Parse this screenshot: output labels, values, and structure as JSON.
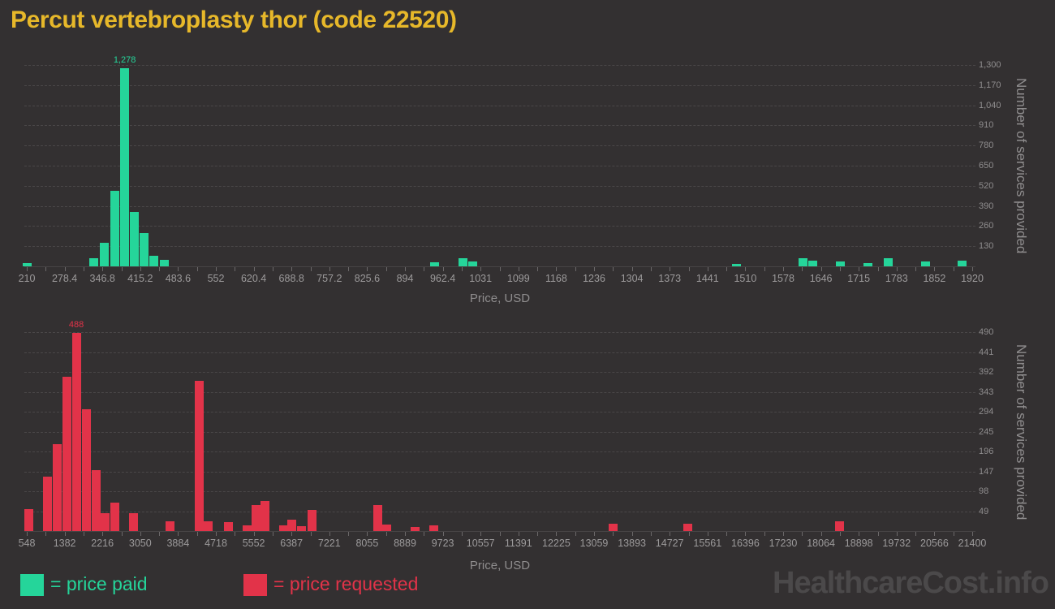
{
  "title": "Percut vertebroplasty thor (code 22520)",
  "watermark": "HealthcareCost.info",
  "colors": {
    "background": "#333031",
    "paid": "#25D59A",
    "requested": "#E23349",
    "title": "#E7B82A",
    "grid": "#4A4748",
    "axis_text": "#9C9A9B",
    "watermark": "#4B494A"
  },
  "legend": [
    {
      "label": "= price paid",
      "color": "#25D59A"
    },
    {
      "label": "= price requested",
      "color": "#E23349"
    }
  ],
  "chart_data": [
    {
      "type": "bar",
      "series_name": "price paid",
      "color": "#25D59A",
      "title": "",
      "xlabel": "Price, USD",
      "ylabel": "Number of services provided",
      "peak_label": "1,278",
      "legend_position": "bottom",
      "grid": true,
      "x_axis": {
        "min": 210,
        "max": 1920,
        "tick_labels": [
          "210",
          "278.4",
          "346.8",
          "415.2",
          "483.6",
          "552",
          "620.4",
          "688.8",
          "757.2",
          "825.6",
          "894",
          "962.4",
          "1031",
          "1099",
          "1168",
          "1236",
          "1304",
          "1373",
          "1441",
          "1510",
          "1578",
          "1646",
          "1715",
          "1783",
          "1852",
          "1920"
        ]
      },
      "y_axis": {
        "min": 0,
        "max": 1300,
        "ticks": [
          130,
          260,
          390,
          520,
          650,
          780,
          910,
          1040,
          1170,
          1300
        ]
      },
      "bars": [
        {
          "price": 210,
          "count": 20
        },
        {
          "price": 331,
          "count": 55
        },
        {
          "price": 350,
          "count": 150
        },
        {
          "price": 369,
          "count": 490
        },
        {
          "price": 387,
          "count": 1278
        },
        {
          "price": 404,
          "count": 350
        },
        {
          "price": 422,
          "count": 215
        },
        {
          "price": 439,
          "count": 70
        },
        {
          "price": 459,
          "count": 40
        },
        {
          "price": 948,
          "count": 25
        },
        {
          "price": 999,
          "count": 50
        },
        {
          "price": 1016,
          "count": 30
        },
        {
          "price": 1494,
          "count": 15
        },
        {
          "price": 1614,
          "count": 50
        },
        {
          "price": 1631,
          "count": 35
        },
        {
          "price": 1682,
          "count": 30
        },
        {
          "price": 1732,
          "count": 20
        },
        {
          "price": 1768,
          "count": 50
        },
        {
          "price": 1835,
          "count": 30
        },
        {
          "price": 1902,
          "count": 38
        }
      ]
    },
    {
      "type": "bar",
      "series_name": "price requested",
      "color": "#E23349",
      "title": "",
      "xlabel": "Price, USD",
      "ylabel": "Number of services provided",
      "peak_label": "488",
      "legend_position": "bottom",
      "grid": true,
      "x_axis": {
        "min": 548,
        "max": 21400,
        "tick_labels": [
          "548",
          "1382",
          "2216",
          "3050",
          "3884",
          "4718",
          "5552",
          "6387",
          "7221",
          "8055",
          "8889",
          "9723",
          "10557",
          "11391",
          "12225",
          "13059",
          "13893",
          "14727",
          "15561",
          "16396",
          "17230",
          "18064",
          "18898",
          "19732",
          "20566",
          "21400"
        ]
      },
      "y_axis": {
        "min": 0,
        "max": 490,
        "ticks": [
          49,
          98,
          147,
          196,
          245,
          294,
          343,
          392,
          441,
          490
        ]
      },
      "bars": [
        {
          "price": 590,
          "count": 55
        },
        {
          "price": 996,
          "count": 135
        },
        {
          "price": 1221,
          "count": 215
        },
        {
          "price": 1427,
          "count": 380
        },
        {
          "price": 1642,
          "count": 488
        },
        {
          "price": 1857,
          "count": 300
        },
        {
          "price": 2073,
          "count": 150
        },
        {
          "price": 2270,
          "count": 45
        },
        {
          "price": 2485,
          "count": 70
        },
        {
          "price": 2898,
          "count": 45
        },
        {
          "price": 3705,
          "count": 25
        },
        {
          "price": 4351,
          "count": 370
        },
        {
          "price": 4557,
          "count": 25
        },
        {
          "price": 4988,
          "count": 22
        },
        {
          "price": 5409,
          "count": 15
        },
        {
          "price": 5606,
          "count": 65
        },
        {
          "price": 5804,
          "count": 75
        },
        {
          "price": 6216,
          "count": 15
        },
        {
          "price": 6395,
          "count": 28
        },
        {
          "price": 6611,
          "count": 12
        },
        {
          "price": 6835,
          "count": 52
        },
        {
          "price": 8288,
          "count": 65
        },
        {
          "price": 8494,
          "count": 16
        },
        {
          "price": 9113,
          "count": 10
        },
        {
          "price": 9516,
          "count": 15
        },
        {
          "price": 13471,
          "count": 18
        },
        {
          "price": 15130,
          "count": 18
        },
        {
          "price": 18475,
          "count": 25
        }
      ]
    }
  ]
}
